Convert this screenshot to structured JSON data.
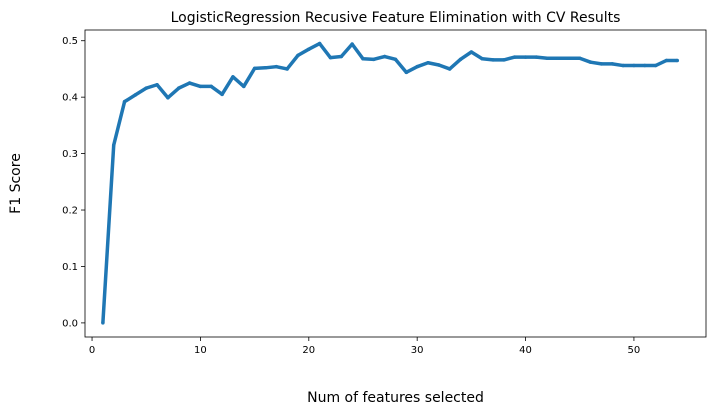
{
  "chart_data": {
    "type": "line",
    "title": "LogisticRegression Recusive Feature Elimination with CV Results",
    "xlabel": "Num of features selected",
    "ylabel": "F1 Score",
    "xlim": [
      -0.65,
      56.65
    ],
    "ylim": [
      -0.025,
      0.519
    ],
    "xticks": [
      0,
      10,
      20,
      30,
      40,
      50
    ],
    "yticks": [
      0.0,
      0.1,
      0.2,
      0.3,
      0.4,
      0.5
    ],
    "xtick_labels": [
      "0",
      "10",
      "20",
      "30",
      "40",
      "50"
    ],
    "ytick_labels": [
      "0.0",
      "0.1",
      "0.2",
      "0.3",
      "0.4",
      "0.5"
    ],
    "grid": false,
    "legend": "none",
    "series": [
      {
        "color": "#1f77b4",
        "x": [
          1,
          2,
          3,
          4,
          5,
          6,
          7,
          8,
          9,
          10,
          11,
          12,
          13,
          14,
          15,
          16,
          17,
          18,
          19,
          20,
          21,
          22,
          23,
          24,
          25,
          26,
          27,
          28,
          29,
          30,
          31,
          32,
          33,
          34,
          35,
          36,
          37,
          38,
          39,
          40,
          41,
          42,
          43,
          44,
          45,
          46,
          47,
          48,
          49,
          50,
          51,
          52,
          53,
          54
        ],
        "y": [
          0.0,
          0.315,
          0.392,
          0.404,
          0.416,
          0.422,
          0.399,
          0.416,
          0.425,
          0.419,
          0.419,
          0.405,
          0.436,
          0.419,
          0.451,
          0.452,
          0.454,
          0.45,
          0.474,
          0.485,
          0.495,
          0.47,
          0.472,
          0.494,
          0.468,
          0.467,
          0.472,
          0.467,
          0.444,
          0.454,
          0.461,
          0.457,
          0.45,
          0.467,
          0.48,
          0.468,
          0.466,
          0.466,
          0.471,
          0.471,
          0.471,
          0.469,
          0.469,
          0.469,
          0.469,
          0.462,
          0.459,
          0.459,
          0.456,
          0.456,
          0.456,
          0.456,
          0.465,
          0.465
        ]
      }
    ]
  }
}
